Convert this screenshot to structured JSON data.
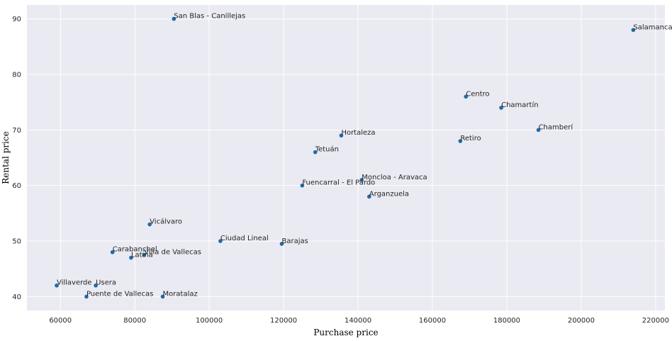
{
  "chart_data": {
    "type": "scatter",
    "title": "",
    "xlabel": "Purchase price",
    "ylabel": "Rental price",
    "xlim": [
      51000,
      222500
    ],
    "ylim": [
      37.5,
      92.5
    ],
    "xticks": [
      60000,
      80000,
      100000,
      120000,
      140000,
      160000,
      180000,
      200000,
      220000
    ],
    "yticks": [
      40,
      50,
      60,
      70,
      80,
      90
    ],
    "grid": true,
    "colors": {
      "background": "#eaeaf2",
      "grid": "#ffffff",
      "point": "#1f6aa5"
    },
    "points": [
      {
        "label": "San Blas - Canillejas",
        "x": 90500,
        "y": 90
      },
      {
        "label": "Salamanca",
        "x": 214000,
        "y": 88
      },
      {
        "label": "Centro",
        "x": 169000,
        "y": 76
      },
      {
        "label": "Chamartín",
        "x": 178500,
        "y": 74
      },
      {
        "label": "Chamberí",
        "x": 188500,
        "y": 70
      },
      {
        "label": "Hortaleza",
        "x": 135500,
        "y": 69
      },
      {
        "label": "Retiro",
        "x": 167500,
        "y": 68
      },
      {
        "label": "Tetuán",
        "x": 128500,
        "y": 66
      },
      {
        "label": "Moncloa - Aravaca",
        "x": 141000,
        "y": 61
      },
      {
        "label": "Fuencarral - El Pardo",
        "x": 125000,
        "y": 60
      },
      {
        "label": "Arganzuela",
        "x": 143000,
        "y": 58
      },
      {
        "label": "Vicálvaro",
        "x": 84000,
        "y": 53
      },
      {
        "label": "Ciudad Lineal",
        "x": 103000,
        "y": 50
      },
      {
        "label": "Barajas",
        "x": 119500,
        "y": 49.5
      },
      {
        "label": "Carabanchel",
        "x": 74000,
        "y": 48
      },
      {
        "label": "Villa de Vallecas",
        "x": 82500,
        "y": 47.5
      },
      {
        "label": "Latina",
        "x": 79000,
        "y": 47
      },
      {
        "label": "Villaverde",
        "x": 59000,
        "y": 42
      },
      {
        "label": "Usera",
        "x": 69500,
        "y": 42
      },
      {
        "label": "Puente de Vallecas",
        "x": 67000,
        "y": 40
      },
      {
        "label": "Moratalaz",
        "x": 87500,
        "y": 40
      }
    ]
  }
}
